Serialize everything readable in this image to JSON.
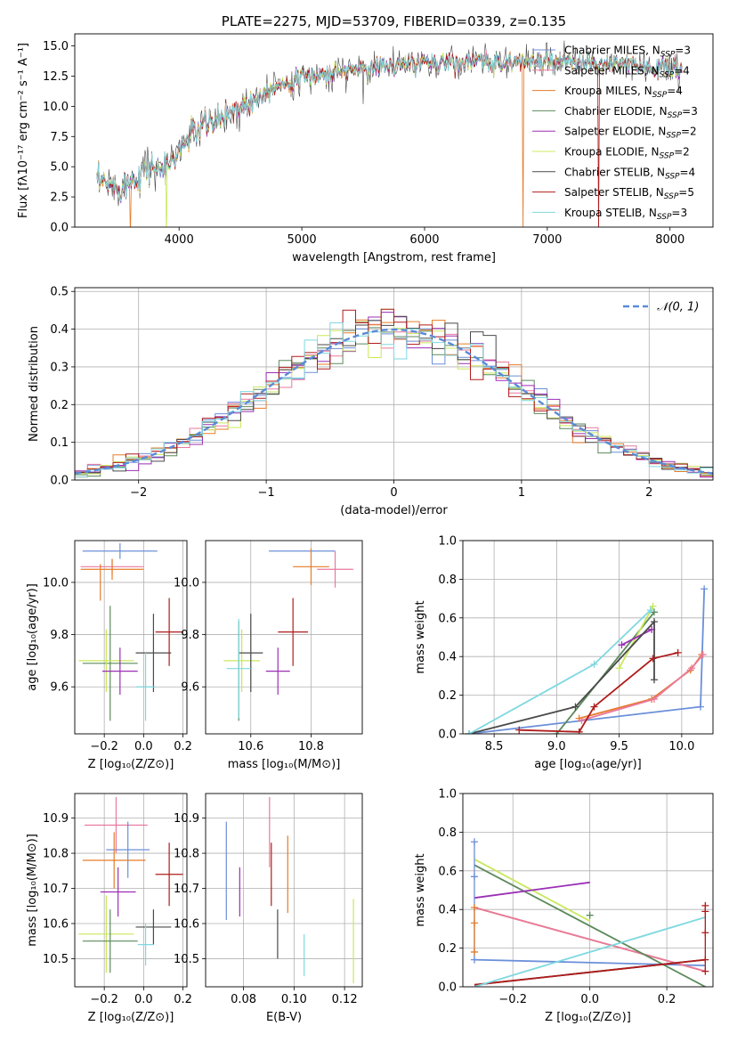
{
  "colors": {
    "Chabrier MILES": "#6b8fd9",
    "Salpeter MILES": "#e9799e",
    "Kroupa MILES": "#e67c2a",
    "Chabrier ELODIE": "#5c8a5c",
    "Salpeter ELODIE": "#9b2fb5",
    "Kroupa ELODIE": "#c8e85c",
    "Chabrier STELIB": "#4a4a4a",
    "Salpeter STELIB": "#b01b1b",
    "Kroupa STELIB": "#7fd8e0"
  },
  "chart_data": [
    {
      "id": "spectrum",
      "type": "line",
      "title": "PLATE=2275, MJD=53709, FIBERID=0339, z=0.135",
      "xlabel": "wavelength [Angstrom, rest frame]",
      "ylabel": "Flux [fλ10⁻¹⁷ erg cm⁻² s⁻¹ A⁻¹]",
      "xlim": [
        3150,
        8350
      ],
      "ylim": [
        0,
        16
      ],
      "xticks": [
        "4000",
        "5000",
        "6000",
        "7000",
        "8000"
      ],
      "yticks": [
        "0.0",
        "2.5",
        "5.0",
        "7.5",
        "10.0",
        "12.5",
        "15.0"
      ],
      "grid": false,
      "legend_position": "right",
      "continuum": {
        "x": [
          3300,
          3400,
          3500,
          3600,
          3700,
          3800,
          3900,
          4000,
          4100,
          4200,
          4300,
          4400,
          4500,
          4600,
          4700,
          4800,
          5000,
          5200,
          5400,
          5600,
          5800,
          6000,
          6200,
          6400,
          6600,
          6800,
          7000,
          7200,
          7400,
          7600,
          7800,
          8000,
          8100
        ],
        "y": [
          3.9,
          3.6,
          3.3,
          3.8,
          4.6,
          5.0,
          4.8,
          6.3,
          7.8,
          8.4,
          8.7,
          9.5,
          10.0,
          10.5,
          11.3,
          11.8,
          12.3,
          12.7,
          13.0,
          13.3,
          13.4,
          13.6,
          13.7,
          13.7,
          13.6,
          13.7,
          13.6,
          13.6,
          13.5,
          13.4,
          13.3,
          13.1,
          13.0
        ]
      },
      "series": [
        {
          "name": "Chabrier MILES, N_SSP=3",
          "label": "Chabrier MILES, N",
          "sub": "SSP",
          "tail": "=3"
        },
        {
          "name": "Salpeter MILES, N_SSP=4",
          "label": "Salpeter MILES, N",
          "sub": "SSP",
          "tail": "=4"
        },
        {
          "name": "Kroupa MILES, N_SSP=4",
          "label": "Kroupa MILES, N",
          "sub": "SSP",
          "tail": "=4"
        },
        {
          "name": "Chabrier ELODIE, N_SSP=3",
          "label": "Chabrier ELODIE, N",
          "sub": "SSP",
          "tail": "=3"
        },
        {
          "name": "Salpeter ELODIE, N_SSP=2",
          "label": "Salpeter ELODIE, N",
          "sub": "SSP",
          "tail": "=2"
        },
        {
          "name": "Kroupa ELODIE, N_SSP=2",
          "label": "Kroupa ELODIE, N",
          "sub": "SSP",
          "tail": "=2"
        },
        {
          "name": "Chabrier STELIB, N_SSP=4",
          "label": "Chabrier STELIB, N",
          "sub": "SSP",
          "tail": "=4"
        },
        {
          "name": "Salpeter STELIB, N_SSP=5",
          "label": "Salpeter STELIB, N",
          "sub": "SSP",
          "tail": "=5"
        },
        {
          "name": "Kroupa STELIB, N_SSP=3",
          "label": "Kroupa STELIB, N",
          "sub": "SSP",
          "tail": "=3"
        }
      ],
      "drops": [
        {
          "series": "Kroupa MILES, N_SSP=4",
          "x": 3600
        },
        {
          "series": "Kroupa ELODIE, N_SSP=2",
          "x": 3900
        },
        {
          "series": "Kroupa MILES, N_SSP=4",
          "x": 6800
        },
        {
          "series": "Salpeter STELIB, N_SSP=5",
          "x": 7420
        }
      ]
    },
    {
      "id": "residuals",
      "type": "line",
      "xlabel": "(data-model)/error",
      "ylabel": "Normed distribution",
      "xlim": [
        -2.5,
        2.5
      ],
      "ylim": [
        0,
        0.51
      ],
      "xticks": [
        "−2",
        "−1",
        "0",
        "1",
        "2"
      ],
      "yticks": [
        "0.0",
        "0.1",
        "0.2",
        "0.3",
        "0.4",
        "0.5"
      ],
      "grid": true,
      "legend": "𝒩(0, 1)",
      "legend_position": "top-right",
      "bin_width": 0.1,
      "reference_curve": "normal(0,1)"
    },
    {
      "id": "age-vs-Z",
      "type": "scatter",
      "xlabel": "Z [log₁₀(Z/Z⊙)]",
      "ylabel": "age  [log₁₀(age/yr)]",
      "xlim": [
        -0.35,
        0.22
      ],
      "ylim": [
        9.42,
        10.16
      ],
      "xticks": [
        "−0.2",
        "0.0",
        "0.2"
      ],
      "yticks": [
        "9.6",
        "9.8",
        "10.0"
      ],
      "grid": true,
      "points": [
        {
          "series": "Chabrier MILES",
          "x": -0.12,
          "xerr": 0.19,
          "y": 10.12,
          "yerr": 0.03
        },
        {
          "series": "Salpeter MILES",
          "x": -0.16,
          "xerr": 0.16,
          "y": 10.06,
          "yerr": 0.03
        },
        {
          "series": "Kroupa MILES",
          "x": -0.16,
          "xerr": 0.16,
          "y": 10.05,
          "yerr": 0.04
        },
        {
          "series": "Kroupa MILES",
          "x": -0.22,
          "xerr": 0.0,
          "y": 10.0,
          "yerr": 0.07
        },
        {
          "series": "Chabrier ELODIE",
          "x": -0.17,
          "xerr": 0.14,
          "y": 9.69,
          "yerr": 0.22
        },
        {
          "series": "Kroupa ELODIE",
          "x": -0.19,
          "xerr": 0.14,
          "y": 9.7,
          "yerr": 0.12
        },
        {
          "series": "Salpeter ELODIE",
          "x": -0.12,
          "xerr": 0.09,
          "y": 9.66,
          "yerr": 0.09
        },
        {
          "series": "Chabrier STELIB",
          "x": 0.05,
          "xerr": 0.09,
          "y": 9.73,
          "yerr": 0.15
        },
        {
          "series": "Salpeter STELIB",
          "x": 0.13,
          "xerr": 0.07,
          "y": 9.81,
          "yerr": 0.13
        },
        {
          "series": "Kroupa STELIB",
          "x": 0.01,
          "xerr": 0.05,
          "y": 9.6,
          "yerr": 0.13
        }
      ]
    },
    {
      "id": "age-vs-mass",
      "type": "scatter",
      "xlabel": "mass [log₁₀(M/M⊙)]",
      "ylabel": "",
      "xlim": [
        10.45,
        10.97
      ],
      "ylim": [
        9.42,
        10.16
      ],
      "xticks": [
        "10.6",
        "10.8"
      ],
      "yticks": [
        "9.6",
        "9.8",
        "10.0"
      ],
      "grid": true,
      "points": [
        {
          "series": "Chabrier MILES",
          "x": 10.77,
          "xerr": 0.11,
          "y": 10.12,
          "yerr": 0.0
        },
        {
          "series": "Salpeter MILES",
          "x": 10.88,
          "xerr": 0.06,
          "y": 10.05,
          "yerr": 0.07
        },
        {
          "series": "Kroupa MILES",
          "x": 10.8,
          "xerr": 0.06,
          "y": 10.06,
          "yerr": 0.07
        },
        {
          "series": "Chabrier ELODIE",
          "x": 10.56,
          "xerr": 0.0,
          "y": 9.66,
          "yerr": 0.19
        },
        {
          "series": "Kroupa ELODIE",
          "x": 10.57,
          "xerr": 0.06,
          "y": 9.7,
          "yerr": 0.12
        },
        {
          "series": "Salpeter ELODIE",
          "x": 10.69,
          "xerr": 0.04,
          "y": 9.66,
          "yerr": 0.09
        },
        {
          "series": "Chabrier STELIB",
          "x": 10.6,
          "xerr": 0.04,
          "y": 9.73,
          "yerr": 0.15
        },
        {
          "series": "Salpeter STELIB",
          "x": 10.74,
          "xerr": 0.05,
          "y": 9.81,
          "yerr": 0.13
        },
        {
          "series": "Kroupa STELIB",
          "x": 10.56,
          "xerr": 0.04,
          "y": 9.67,
          "yerr": 0.19
        }
      ]
    },
    {
      "id": "weight-vs-age",
      "type": "line",
      "xlabel": "age  [log₁₀(age/yr)]",
      "ylabel": "mass weight",
      "xlim": [
        8.25,
        10.25
      ],
      "ylim": [
        0,
        1.0
      ],
      "xticks": [
        "8.5",
        "9.0",
        "9.5",
        "10.0"
      ],
      "yticks": [
        "0.0",
        "0.2",
        "0.4",
        "0.6",
        "0.8",
        "1.0"
      ],
      "grid": true,
      "series": [
        {
          "name": "Chabrier MILES",
          "x": [
            8.3,
            10.15,
            10.18
          ],
          "y": [
            0.0,
            0.14,
            0.75
          ]
        },
        {
          "name": "Kroupa MILES",
          "x": [
            9.18,
            9.76,
            10.07,
            10.16
          ],
          "y": [
            0.08,
            0.18,
            0.33,
            0.41
          ]
        },
        {
          "name": "Salpeter MILES",
          "x": [
            9.2,
            9.78,
            10.08,
            10.17
          ],
          "y": [
            0.07,
            0.18,
            0.34,
            0.41
          ]
        },
        {
          "name": "Chabrier ELODIE",
          "x": [
            9.0,
            9.78
          ],
          "y": [
            0.0,
            0.63
          ]
        },
        {
          "name": "Kroupa ELODIE",
          "x": [
            9.5,
            9.77
          ],
          "y": [
            0.34,
            0.66
          ]
        },
        {
          "name": "Salpeter ELODIE",
          "x": [
            9.52,
            9.76
          ],
          "y": [
            0.46,
            0.54
          ]
        },
        {
          "name": "Chabrier STELIB",
          "x": [
            8.3,
            9.15,
            9.78,
            9.78
          ],
          "y": [
            0.0,
            0.14,
            0.58,
            0.28
          ]
        },
        {
          "name": "Salpeter STELIB",
          "x": [
            8.7,
            9.18,
            9.3,
            9.77,
            9.97
          ],
          "y": [
            0.02,
            0.01,
            0.14,
            0.39,
            0.42
          ]
        },
        {
          "name": "Kroupa STELIB",
          "x": [
            8.3,
            9.3,
            9.75
          ],
          "y": [
            0.0,
            0.36,
            0.64
          ]
        }
      ]
    },
    {
      "id": "mass-vs-Z",
      "type": "scatter",
      "xlabel": "Z [log₁₀(Z/Z⊙)]",
      "ylabel": "mass [log₁₀(M/M⊙)]",
      "xlim": [
        -0.35,
        0.22
      ],
      "ylim": [
        10.42,
        10.97
      ],
      "xticks": [
        "−0.2",
        "0.0",
        "0.2"
      ],
      "yticks": [
        "10.5",
        "10.6",
        "10.7",
        "10.8",
        "10.9"
      ],
      "grid": true,
      "points": [
        {
          "series": "Salpeter MILES",
          "x": -0.14,
          "xerr": 0.16,
          "y": 10.88,
          "yerr": 0.08
        },
        {
          "series": "Chabrier MILES",
          "x": -0.08,
          "xerr": 0.11,
          "y": 10.81,
          "yerr": 0.08
        },
        {
          "series": "Kroupa MILES",
          "x": -0.15,
          "xerr": 0.16,
          "y": 10.78,
          "yerr": 0.08
        },
        {
          "series": "Salpeter ELODIE",
          "x": -0.13,
          "xerr": 0.09,
          "y": 10.69,
          "yerr": 0.07
        },
        {
          "series": "Salpeter STELIB",
          "x": 0.13,
          "xerr": 0.07,
          "y": 10.74,
          "yerr": 0.09
        },
        {
          "series": "Chabrier STELIB",
          "x": 0.05,
          "xerr": 0.09,
          "y": 10.59,
          "yerr": 0.05
        },
        {
          "series": "Kroupa ELODIE",
          "x": -0.19,
          "xerr": 0.14,
          "y": 10.57,
          "yerr": 0.11
        },
        {
          "series": "Chabrier ELODIE",
          "x": -0.17,
          "xerr": 0.14,
          "y": 10.55,
          "yerr": 0.09
        },
        {
          "series": "Kroupa STELIB",
          "x": 0.01,
          "xerr": 0.04,
          "y": 10.54,
          "yerr": 0.06
        }
      ]
    },
    {
      "id": "mass-vs-EBV",
      "type": "scatter",
      "xlabel": "E(B-V)",
      "ylabel": "",
      "xlim": [
        0.065,
        0.127
      ],
      "ylim": [
        10.42,
        10.97
      ],
      "xticks": [
        "0.08",
        "0.10",
        "0.12"
      ],
      "yticks": [
        "10.5",
        "10.6",
        "10.7",
        "10.8",
        "10.9"
      ],
      "grid": true,
      "points": [
        {
          "series": "Chabrier MILES",
          "x": 0.0732,
          "xerr": 0.0,
          "y": 10.75,
          "yerr": 0.14
        },
        {
          "series": "Salpeter ELODIE",
          "x": 0.0785,
          "xerr": 0.0,
          "y": 10.69,
          "yerr": 0.07
        },
        {
          "series": "Salpeter MILES",
          "x": 0.0903,
          "xerr": 0.0,
          "y": 10.86,
          "yerr": 0.1
        },
        {
          "series": "Salpeter STELIB",
          "x": 0.091,
          "xerr": 0.0,
          "y": 10.74,
          "yerr": 0.09
        },
        {
          "series": "Chabrier STELIB",
          "x": 0.0935,
          "xerr": 0.0,
          "y": 10.57,
          "yerr": 0.07
        },
        {
          "series": "Kroupa MILES",
          "x": 0.0975,
          "xerr": 0.0,
          "y": 10.74,
          "yerr": 0.11
        },
        {
          "series": "Kroupa STELIB",
          "x": 0.104,
          "xerr": 0.0,
          "y": 10.51,
          "yerr": 0.06
        },
        {
          "series": "Kroupa ELODIE",
          "x": 0.1235,
          "xerr": 0.0,
          "y": 10.55,
          "yerr": 0.12
        }
      ]
    },
    {
      "id": "weight-vs-Z",
      "type": "line",
      "xlabel": "Z [log₁₀(Z/Z⊙)]",
      "ylabel": "mass weight",
      "xlim": [
        -0.33,
        0.32
      ],
      "ylim": [
        0,
        1.0
      ],
      "xticks": [
        "−0.2",
        "0.0",
        "0.2"
      ],
      "yticks": [
        "0.0",
        "0.2",
        "0.4",
        "0.6",
        "0.8",
        "1.0"
      ],
      "grid": true,
      "series": [
        {
          "name": "Chabrier MILES",
          "x": [
            -0.3,
            0.3
          ],
          "y": [
            0.14,
            0.11
          ]
        },
        {
          "name": "Kroupa MILES",
          "x": [
            -0.3,
            0.3
          ],
          "y": [
            0.41,
            0.08
          ]
        },
        {
          "name": "Salpeter MILES",
          "x": [
            -0.3,
            0.3
          ],
          "y": [
            0.41,
            0.08
          ]
        },
        {
          "name": "Chabrier ELODIE",
          "x": [
            -0.3,
            0.3
          ],
          "y": [
            0.63,
            0.0
          ]
        },
        {
          "name": "Kroupa ELODIE",
          "x": [
            -0.3,
            0.0
          ],
          "y": [
            0.66,
            0.34
          ]
        },
        {
          "name": "Salpeter ELODIE",
          "x": [
            -0.3,
            0.0
          ],
          "y": [
            0.46,
            0.54
          ]
        },
        {
          "name": "Chabrier STELIB",
          "x": [
            -0.3,
            0.3
          ],
          "y": [
            0.01,
            0.14
          ]
        },
        {
          "name": "Salpeter STELIB",
          "x": [
            -0.3,
            0.3
          ],
          "y": [
            0.01,
            0.14
          ]
        },
        {
          "name": "Kroupa STELIB",
          "x": [
            -0.3,
            0.3
          ],
          "y": [
            0.0,
            0.36
          ]
        }
      ],
      "markers": [
        {
          "series": "Chabrier MILES",
          "x": -0.3,
          "y": [
            0.75,
            0.57,
            0.14
          ]
        },
        {
          "series": "Kroupa MILES",
          "x": -0.3,
          "y": [
            0.41,
            0.33,
            0.18
          ]
        },
        {
          "series": "Salpeter STELIB",
          "x": 0.3,
          "y": [
            0.42,
            0.39,
            0.28,
            0.14,
            0.08
          ]
        },
        {
          "series": "Chabrier ELODIE",
          "x": 0.0,
          "y": [
            0.37
          ]
        }
      ]
    }
  ]
}
